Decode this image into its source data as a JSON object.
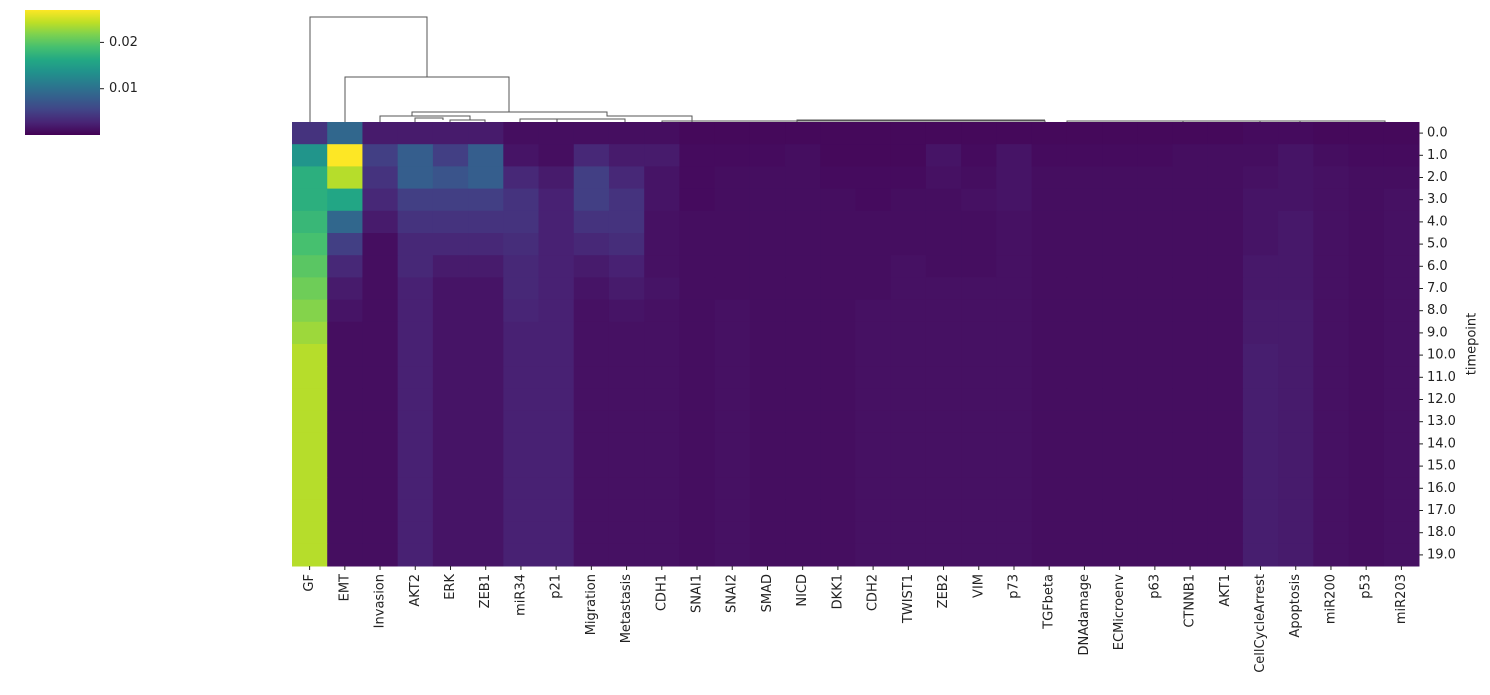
{
  "chart_data": {
    "type": "heatmap",
    "y_label": "timepoint",
    "columns": [
      "GF",
      "EMT",
      "Invasion",
      "AKT2",
      "ERK",
      "ZEB1",
      "miR34",
      "p21",
      "Migration",
      "Metastasis",
      "CDH1",
      "SNAI1",
      "SNAI2",
      "SMAD",
      "NICD",
      "DKK1",
      "CDH2",
      "TWIST1",
      "ZEB2",
      "VIM",
      "p73",
      "TGFbeta",
      "DNAdamage",
      "ECMicroenv",
      "p63",
      "CTNNB1",
      "AKT1",
      "CellCycleArrest",
      "Apoptosis",
      "miR200",
      "p53",
      "miR203"
    ],
    "rows": [
      "0.0",
      "1.0",
      "2.0",
      "3.0",
      "4.0",
      "5.0",
      "6.0",
      "7.0",
      "8.0",
      "9.0",
      "10.0",
      "11.0",
      "12.0",
      "13.0",
      "14.0",
      "15.0",
      "16.0",
      "17.0",
      "18.0",
      "19.0"
    ],
    "values": [
      [
        0.004,
        0.009,
        0.002,
        0.002,
        0.002,
        0.002,
        0.001,
        0.001,
        0.001,
        0.001,
        0.001,
        0.0006,
        0.0006,
        0.0006,
        0.0006,
        0.0006,
        0.0006,
        0.0006,
        0.0006,
        0.0006,
        0.0006,
        0.0006,
        0.0006,
        0.0006,
        0.0006,
        0.0006,
        0.0006,
        0.0008,
        0.0008,
        0.0006,
        0.0006,
        0.0006
      ],
      [
        0.014,
        0.027,
        0.005,
        0.008,
        0.005,
        0.008,
        0.0015,
        0.001,
        0.003,
        0.002,
        0.002,
        0.0008,
        0.0008,
        0.0008,
        0.001,
        0.0006,
        0.0006,
        0.0006,
        0.0015,
        0.0008,
        0.0015,
        0.0008,
        0.0008,
        0.0008,
        0.0008,
        0.001,
        0.001,
        0.001,
        0.0015,
        0.001,
        0.0008,
        0.0008
      ],
      [
        0.017,
        0.024,
        0.004,
        0.008,
        0.007,
        0.008,
        0.003,
        0.002,
        0.005,
        0.003,
        0.0015,
        0.0008,
        0.001,
        0.001,
        0.001,
        0.0008,
        0.0008,
        0.0008,
        0.0012,
        0.001,
        0.0015,
        0.001,
        0.001,
        0.001,
        0.001,
        0.001,
        0.001,
        0.0012,
        0.0015,
        0.0012,
        0.001,
        0.001
      ],
      [
        0.017,
        0.016,
        0.003,
        0.005,
        0.005,
        0.005,
        0.004,
        0.0025,
        0.005,
        0.004,
        0.0015,
        0.0008,
        0.001,
        0.001,
        0.001,
        0.001,
        0.0008,
        0.001,
        0.001,
        0.0012,
        0.0015,
        0.001,
        0.001,
        0.001,
        0.001,
        0.001,
        0.001,
        0.0015,
        0.0015,
        0.0012,
        0.001,
        0.0012
      ],
      [
        0.018,
        0.009,
        0.002,
        0.004,
        0.004,
        0.004,
        0.004,
        0.0025,
        0.004,
        0.004,
        0.0012,
        0.001,
        0.001,
        0.001,
        0.001,
        0.001,
        0.001,
        0.001,
        0.001,
        0.001,
        0.0012,
        0.001,
        0.001,
        0.001,
        0.001,
        0.001,
        0.001,
        0.0015,
        0.0018,
        0.0012,
        0.001,
        0.0012
      ],
      [
        0.019,
        0.005,
        0.001,
        0.003,
        0.003,
        0.003,
        0.0035,
        0.0025,
        0.003,
        0.0035,
        0.0012,
        0.001,
        0.001,
        0.001,
        0.001,
        0.001,
        0.001,
        0.001,
        0.001,
        0.001,
        0.0012,
        0.001,
        0.001,
        0.001,
        0.001,
        0.001,
        0.001,
        0.0015,
        0.0018,
        0.0012,
        0.001,
        0.0012
      ],
      [
        0.02,
        0.003,
        0.001,
        0.003,
        0.002,
        0.002,
        0.003,
        0.0025,
        0.002,
        0.0025,
        0.0012,
        0.001,
        0.001,
        0.001,
        0.001,
        0.001,
        0.001,
        0.0012,
        0.001,
        0.001,
        0.0012,
        0.001,
        0.001,
        0.001,
        0.001,
        0.001,
        0.001,
        0.0018,
        0.0018,
        0.0012,
        0.001,
        0.0012
      ],
      [
        0.021,
        0.002,
        0.001,
        0.0025,
        0.0015,
        0.0015,
        0.003,
        0.0025,
        0.0015,
        0.002,
        0.0015,
        0.001,
        0.001,
        0.001,
        0.001,
        0.001,
        0.001,
        0.0012,
        0.0012,
        0.0012,
        0.0012,
        0.001,
        0.001,
        0.001,
        0.001,
        0.001,
        0.001,
        0.0018,
        0.0018,
        0.0012,
        0.001,
        0.0012
      ],
      [
        0.022,
        0.0015,
        0.001,
        0.0025,
        0.0015,
        0.0015,
        0.0028,
        0.0025,
        0.0012,
        0.0015,
        0.0012,
        0.001,
        0.0012,
        0.001,
        0.001,
        0.001,
        0.0012,
        0.0012,
        0.0012,
        0.0012,
        0.0012,
        0.001,
        0.001,
        0.001,
        0.001,
        0.001,
        0.001,
        0.002,
        0.002,
        0.0012,
        0.001,
        0.0012
      ],
      [
        0.023,
        0.001,
        0.001,
        0.0025,
        0.0015,
        0.0015,
        0.0025,
        0.0025,
        0.0012,
        0.0012,
        0.0012,
        0.001,
        0.0012,
        0.001,
        0.001,
        0.001,
        0.0012,
        0.0012,
        0.0012,
        0.0012,
        0.0012,
        0.001,
        0.001,
        0.001,
        0.001,
        0.001,
        0.001,
        0.002,
        0.002,
        0.0012,
        0.001,
        0.0012
      ],
      [
        0.024,
        0.001,
        0.001,
        0.0025,
        0.0015,
        0.0015,
        0.0025,
        0.0025,
        0.0012,
        0.0012,
        0.0012,
        0.001,
        0.0012,
        0.001,
        0.001,
        0.001,
        0.0012,
        0.0012,
        0.0012,
        0.0012,
        0.0012,
        0.001,
        0.001,
        0.001,
        0.001,
        0.001,
        0.001,
        0.0022,
        0.002,
        0.0012,
        0.001,
        0.0012
      ],
      [
        0.024,
        0.001,
        0.001,
        0.0025,
        0.0015,
        0.0015,
        0.0025,
        0.0025,
        0.0012,
        0.0012,
        0.0012,
        0.001,
        0.0012,
        0.001,
        0.001,
        0.001,
        0.0012,
        0.0012,
        0.0012,
        0.0012,
        0.0012,
        0.001,
        0.001,
        0.001,
        0.001,
        0.001,
        0.001,
        0.0022,
        0.002,
        0.0012,
        0.001,
        0.0012
      ],
      [
        0.024,
        0.001,
        0.001,
        0.0025,
        0.0015,
        0.0015,
        0.0025,
        0.0025,
        0.0012,
        0.0012,
        0.0012,
        0.001,
        0.0012,
        0.001,
        0.001,
        0.001,
        0.0012,
        0.0012,
        0.0012,
        0.0012,
        0.0012,
        0.001,
        0.001,
        0.001,
        0.001,
        0.001,
        0.001,
        0.0022,
        0.002,
        0.0012,
        0.001,
        0.0012
      ],
      [
        0.024,
        0.001,
        0.001,
        0.0025,
        0.0015,
        0.0015,
        0.0025,
        0.0025,
        0.0012,
        0.0012,
        0.0012,
        0.001,
        0.0012,
        0.001,
        0.001,
        0.001,
        0.0012,
        0.0012,
        0.0012,
        0.0012,
        0.0012,
        0.001,
        0.001,
        0.001,
        0.001,
        0.001,
        0.001,
        0.0022,
        0.002,
        0.0012,
        0.001,
        0.0012
      ],
      [
        0.024,
        0.001,
        0.001,
        0.0025,
        0.0015,
        0.0015,
        0.0025,
        0.0025,
        0.0012,
        0.0012,
        0.0012,
        0.001,
        0.0012,
        0.001,
        0.001,
        0.001,
        0.0012,
        0.0012,
        0.0012,
        0.0012,
        0.0012,
        0.001,
        0.001,
        0.001,
        0.001,
        0.001,
        0.001,
        0.0022,
        0.002,
        0.0012,
        0.001,
        0.0012
      ],
      [
        0.024,
        0.001,
        0.001,
        0.0025,
        0.0015,
        0.0015,
        0.0025,
        0.0025,
        0.0012,
        0.0012,
        0.0012,
        0.001,
        0.0012,
        0.001,
        0.001,
        0.001,
        0.0012,
        0.0012,
        0.0012,
        0.0012,
        0.0012,
        0.001,
        0.001,
        0.001,
        0.001,
        0.001,
        0.001,
        0.0022,
        0.002,
        0.0012,
        0.001,
        0.0012
      ],
      [
        0.024,
        0.001,
        0.001,
        0.0025,
        0.0015,
        0.0015,
        0.0025,
        0.0025,
        0.0012,
        0.0012,
        0.0012,
        0.001,
        0.0012,
        0.001,
        0.001,
        0.001,
        0.0012,
        0.0012,
        0.0012,
        0.0012,
        0.0012,
        0.001,
        0.001,
        0.001,
        0.001,
        0.001,
        0.001,
        0.0022,
        0.002,
        0.0012,
        0.001,
        0.0012
      ],
      [
        0.024,
        0.001,
        0.001,
        0.0025,
        0.0015,
        0.0015,
        0.0025,
        0.0025,
        0.0012,
        0.0012,
        0.0012,
        0.001,
        0.0012,
        0.001,
        0.001,
        0.001,
        0.0012,
        0.0012,
        0.0012,
        0.0012,
        0.0012,
        0.001,
        0.001,
        0.001,
        0.001,
        0.001,
        0.001,
        0.0022,
        0.002,
        0.0012,
        0.001,
        0.0012
      ],
      [
        0.024,
        0.001,
        0.001,
        0.0025,
        0.0015,
        0.0015,
        0.0025,
        0.0025,
        0.0012,
        0.0012,
        0.0012,
        0.001,
        0.0012,
        0.001,
        0.001,
        0.001,
        0.0012,
        0.0012,
        0.0012,
        0.0012,
        0.0012,
        0.001,
        0.001,
        0.001,
        0.001,
        0.001,
        0.001,
        0.0022,
        0.002,
        0.0012,
        0.001,
        0.0012
      ],
      [
        0.024,
        0.001,
        0.001,
        0.0025,
        0.0015,
        0.0015,
        0.0025,
        0.0025,
        0.0012,
        0.0012,
        0.0012,
        0.001,
        0.0012,
        0.001,
        0.001,
        0.001,
        0.0012,
        0.0012,
        0.0012,
        0.0012,
        0.0012,
        0.001,
        0.001,
        0.001,
        0.001,
        0.001,
        0.001,
        0.0022,
        0.002,
        0.0012,
        0.001,
        0.0012
      ]
    ],
    "colormap": "viridis",
    "clim": [
      0,
      0.027
    ],
    "cticks": [
      0.01,
      0.02
    ]
  }
}
